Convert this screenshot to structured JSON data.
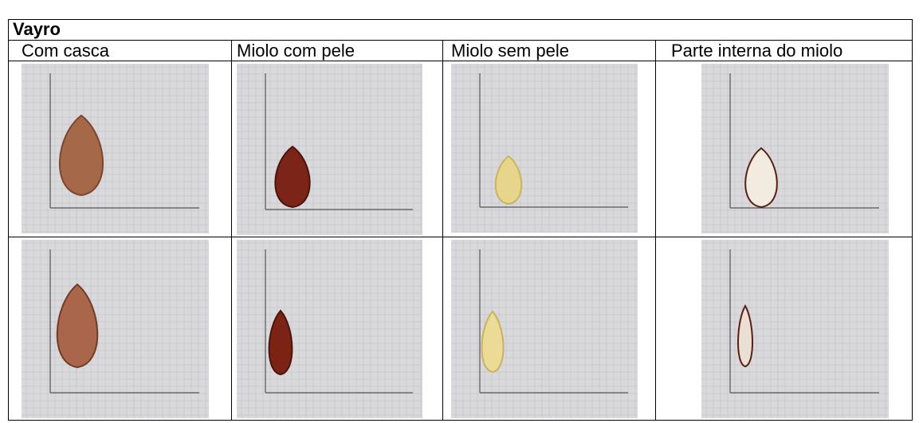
{
  "table": {
    "title": "Vayro",
    "columns": [
      "Com casca",
      "Miolo com pele",
      "Miolo sem pele",
      "Parte interna do miolo"
    ]
  }
}
